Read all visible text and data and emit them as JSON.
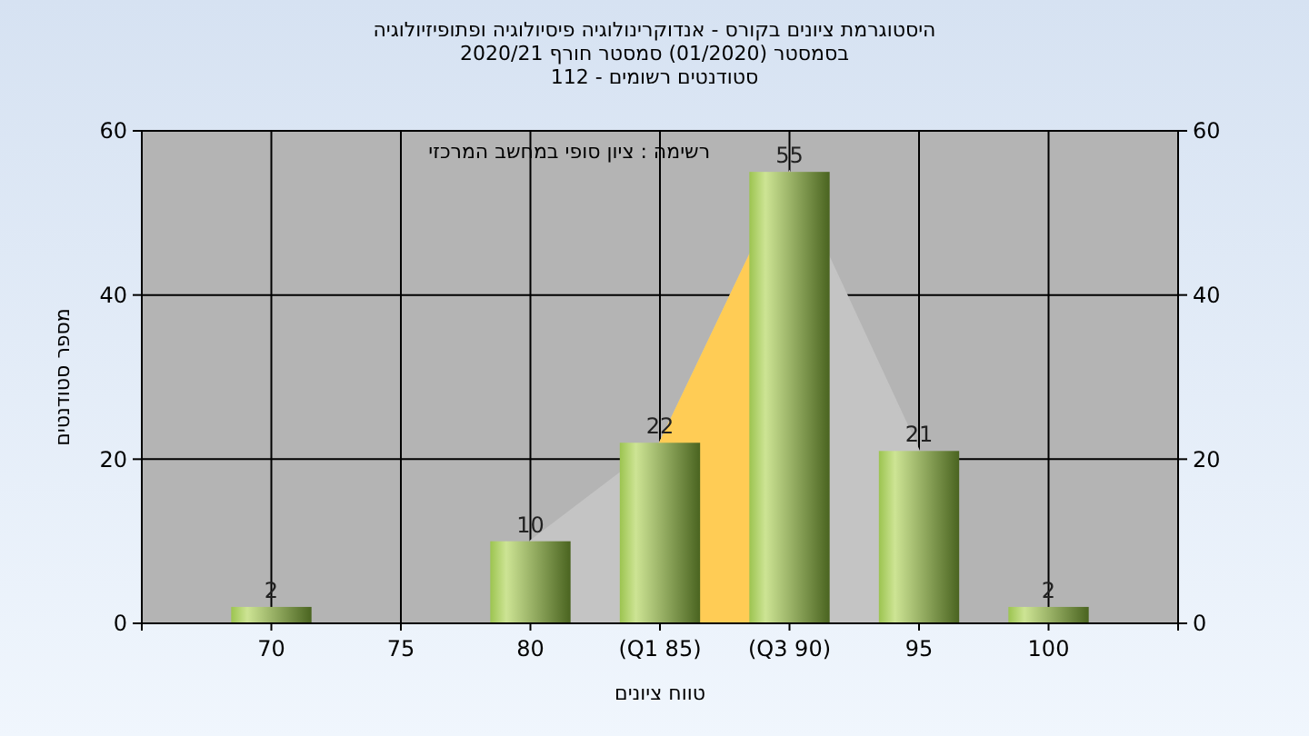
{
  "chart_data": {
    "type": "bar",
    "title": "היסטוגרמת ציונים בקורס - אנדוקרינולוגיה פיסיולוגיה ופתופיזיולוגיה",
    "subtitle": "בסמסטר  (01/2020)  סמסטר חורף  2020/21\nסטודנטים רשומים - 112",
    "xlabel": "טווח ציונים",
    "ylabel": "מספר סטודנטים",
    "annotations": [
      "רשימה : ציון סופי במחשב המרכזי"
    ],
    "categories": [
      "70",
      "75",
      "80",
      "(Q1 85)",
      "(Q3 90)",
      "95",
      "100"
    ],
    "series": [
      {
        "type": "area",
        "color": "#c4c4c4",
        "values": [
          null,
          null,
          10,
          22,
          55,
          21,
          null
        ]
      },
      {
        "type": "area",
        "color": "#ffcc55",
        "values": [
          null,
          null,
          null,
          22,
          55,
          null,
          null
        ]
      },
      {
        "type": "bar",
        "color": "#9cc450",
        "values": [
          2,
          0,
          10,
          22,
          55,
          21,
          2
        ],
        "value_labels": [
          "2",
          null,
          "10",
          "22",
          "55",
          "21",
          "2"
        ]
      }
    ],
    "ylim": [
      0,
      60
    ],
    "yticks": [
      0,
      20,
      40,
      60
    ],
    "y2lim": [
      0,
      60
    ],
    "y2ticks": [
      0,
      20,
      40,
      60
    ],
    "grid": true
  }
}
